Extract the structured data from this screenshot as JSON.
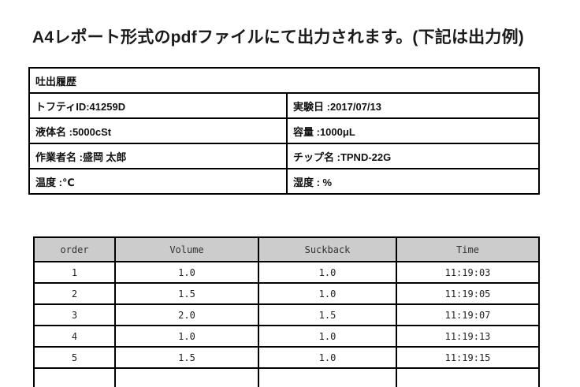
{
  "page": {
    "title": "A4レポート形式のpdfファイルにて出力されます。(下記は出力例)"
  },
  "info_table": {
    "title": "吐出履歴",
    "rows": [
      {
        "left": "トフティID:41259D",
        "right": "実験日 :2017/07/13"
      },
      {
        "left": "液体名 :5000cSt",
        "right": "容量 :1000μL"
      },
      {
        "left": "作業者名 :盛岡 太郎",
        "right": "チップ名 :TPND-22G"
      },
      {
        "left": "温度 :℃",
        "right": "湿度 : %"
      }
    ]
  },
  "log_table": {
    "columns": [
      "order",
      "Volume",
      "Suckback",
      "Time"
    ],
    "rows": [
      [
        "1",
        "1.0",
        "1.0",
        "11:19:03"
      ],
      [
        "2",
        "1.5",
        "1.0",
        "11:19:05"
      ],
      [
        "3",
        "2.0",
        "1.5",
        "11:19:07"
      ],
      [
        "4",
        "1.0",
        "1.0",
        "11:19:13"
      ],
      [
        "5",
        "1.5",
        "1.0",
        "11:19:15"
      ],
      [
        "",
        "",
        "",
        ""
      ]
    ],
    "header_bg": "#cccccc",
    "border_color": "#000000"
  }
}
